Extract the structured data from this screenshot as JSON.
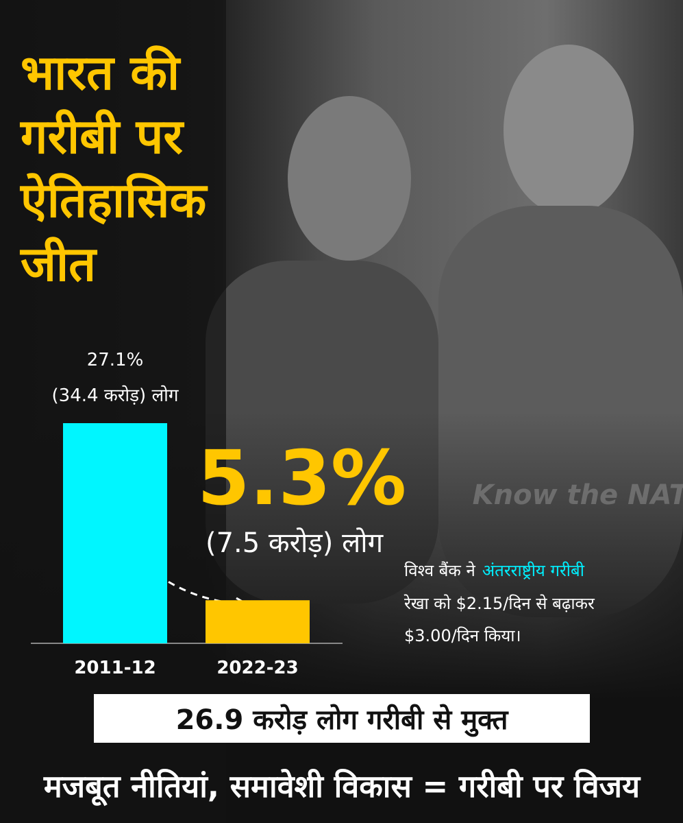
{
  "chart_data": {
    "type": "bar",
    "title_lines": [
      "भारत की",
      "गरीबी पर",
      "ऐतिहासिक",
      "जीत"
    ],
    "categories": [
      "2011-12",
      "2022-23"
    ],
    "values": [
      27.1,
      5.3
    ],
    "value_labels": [
      "27.1%",
      "5.3%"
    ],
    "people_labels": [
      "(34.4 करोड़) लोग",
      "(7.5 करोड़) लोग"
    ],
    "colors": [
      "#00f6ff",
      "#ffc600"
    ],
    "note": {
      "prefix": "विश्व बैंक ने",
      "highlight": "अंतरराष्ट्रीय गरीबी",
      "line2": "रेखा को $2.15/दिन से बढ़ाकर",
      "line3": "$3.00/दिन किया।"
    },
    "banner": "26.9 करोड़ लोग गरीबी से मुक्त",
    "footer": "मजबूत नीतियां, समावेशी विकास = गरीबी पर विजय",
    "watermark": "Know the NATION"
  }
}
